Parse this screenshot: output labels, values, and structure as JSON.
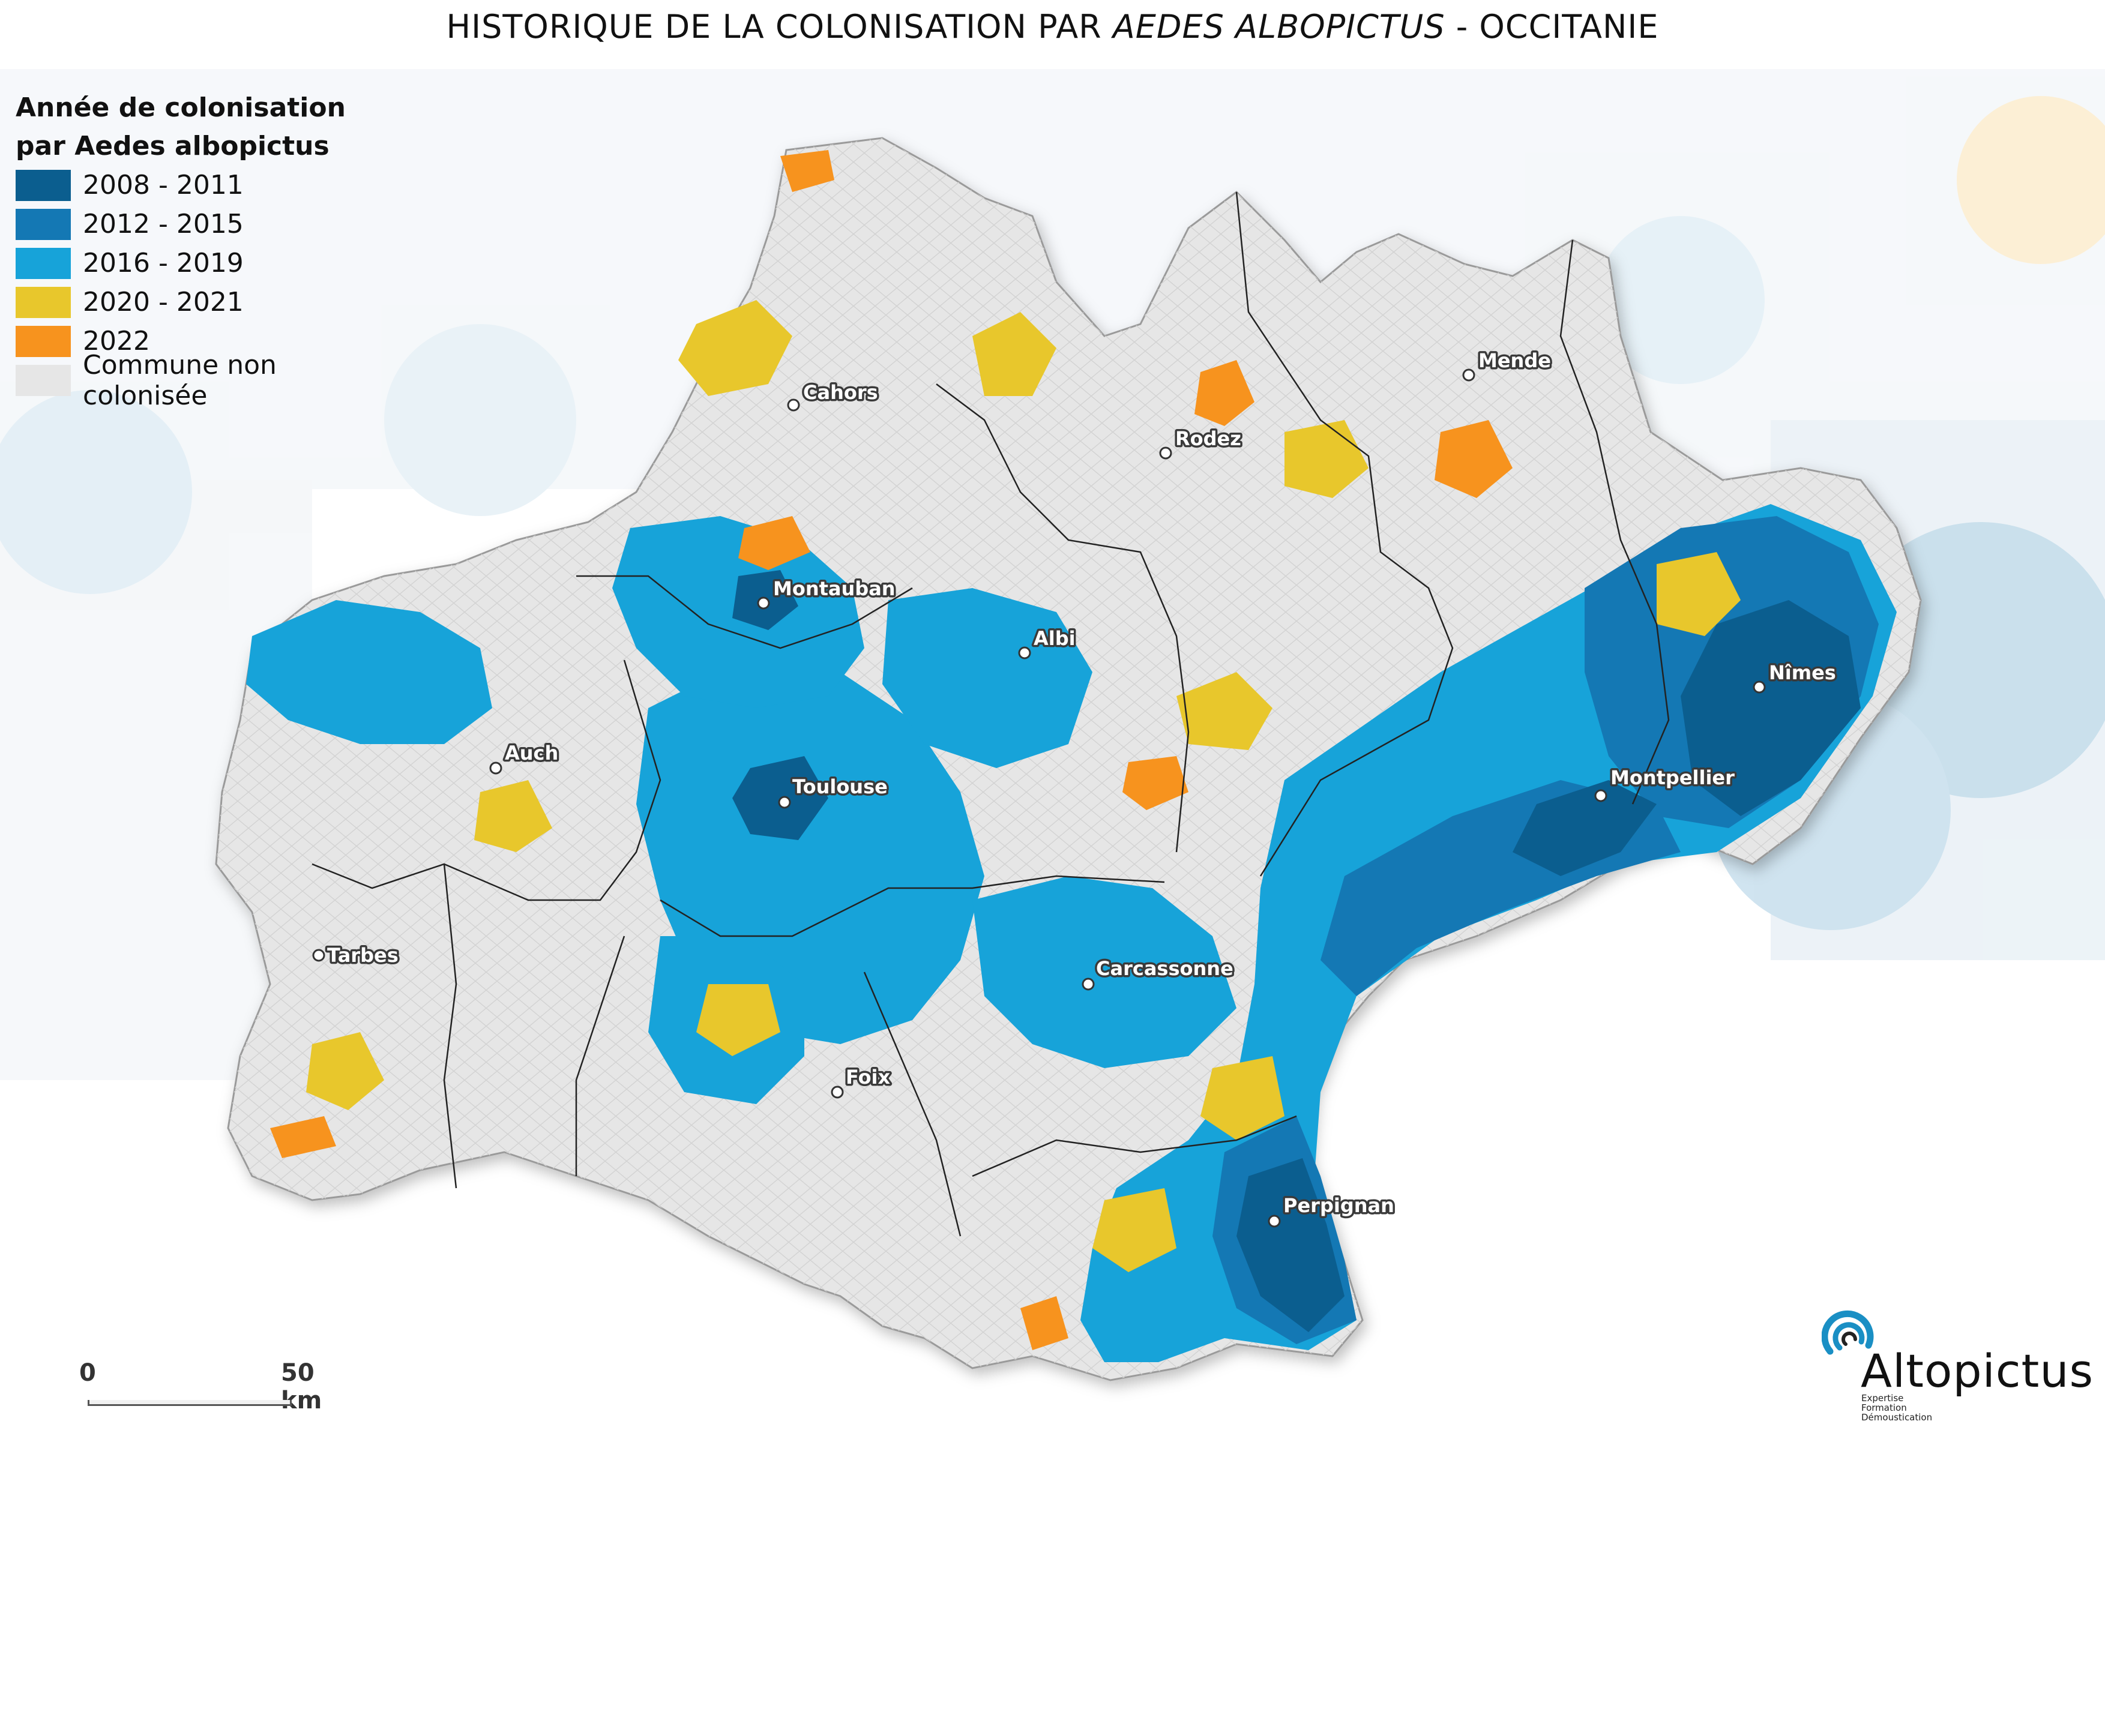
{
  "title": {
    "prefix": "HISTORIQUE DE LA COLONISATION PAR ",
    "species": "AEDES ALBOPICTUS",
    "suffix": " - OCCITANIE"
  },
  "legend": {
    "title": "Année de colonisation\npar Aedes albopictus",
    "items": [
      {
        "label": "2008 - 2011",
        "color": "#0b5e8f"
      },
      {
        "label": "2012 - 2015",
        "color": "#1478b4"
      },
      {
        "label": "2016 - 2019",
        "color": "#17a3d9"
      },
      {
        "label": "2020 - 2021",
        "color": "#e8c72c"
      },
      {
        "label": "2022",
        "color": "#f7931e"
      },
      {
        "label": "Commune non colonisée",
        "color": "#e6e6e6"
      }
    ]
  },
  "cities": [
    {
      "name": "Cahors"
    },
    {
      "name": "Mende"
    },
    {
      "name": "Rodez"
    },
    {
      "name": "Montauban"
    },
    {
      "name": "Albi"
    },
    {
      "name": "Nîmes"
    },
    {
      "name": "Auch"
    },
    {
      "name": "Toulouse"
    },
    {
      "name": "Montpellier"
    },
    {
      "name": "Tarbes"
    },
    {
      "name": "Carcassonne"
    },
    {
      "name": "Foix"
    },
    {
      "name": "Perpignan"
    }
  ],
  "scale": {
    "min_label": "0",
    "max_label": "50 km"
  },
  "logo": {
    "name": "Altopictus",
    "tagline": [
      "Expertise",
      "Formation",
      "Démoustication"
    ],
    "color": "#1a8fc4"
  }
}
